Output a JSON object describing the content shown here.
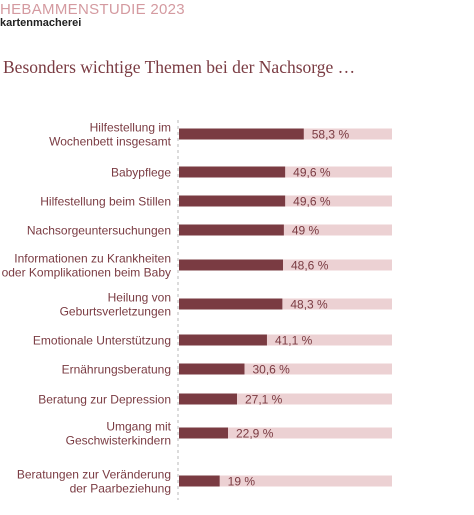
{
  "header": {
    "eyebrow": "HEBAMMENSTUDIE 2023",
    "brand": "kartenmacherei"
  },
  "colors": {
    "bar": "#7a3b42",
    "track": "#ecd1d3",
    "label_text": "#7a3b42",
    "value_text": "#7a3b42",
    "eyebrow": "#d49aa0"
  },
  "chart_data": {
    "type": "bar",
    "orientation": "horizontal",
    "title": "Besonders wichtige Themen bei der Nachsorge …",
    "xlim": [
      0,
      100
    ],
    "categories": [
      [
        "Hilfestellung im",
        "Wochenbett insgesamt"
      ],
      [
        "Babypflege"
      ],
      [
        "Hilfestellung beim Stillen"
      ],
      [
        "Nachsorgeuntersuchungen"
      ],
      [
        "Informationen zu Krankheiten",
        "oder Komplikationen beim Baby"
      ],
      [
        "Heilung von",
        "Geburtsverletzungen"
      ],
      [
        "Emotionale Unterstützung"
      ],
      [
        "Ernährungsberatung"
      ],
      [
        "Beratung zur Depression"
      ],
      [
        "Umgang mit",
        "Geschwisterkindern"
      ],
      [
        "Beratungen zur Veränderung",
        "der Paarbeziehung"
      ]
    ],
    "values": [
      58.3,
      49.6,
      49.6,
      49,
      48.6,
      48.3,
      41.1,
      30.6,
      27.1,
      22.9,
      19
    ],
    "value_labels": [
      "58,3 %",
      "49,6 %",
      "49,6 %",
      "49 %",
      "48,6 %",
      "48,3 %",
      "41,1 %",
      "30,6 %",
      "27,1 %",
      "22,9 %",
      "19 %"
    ]
  }
}
